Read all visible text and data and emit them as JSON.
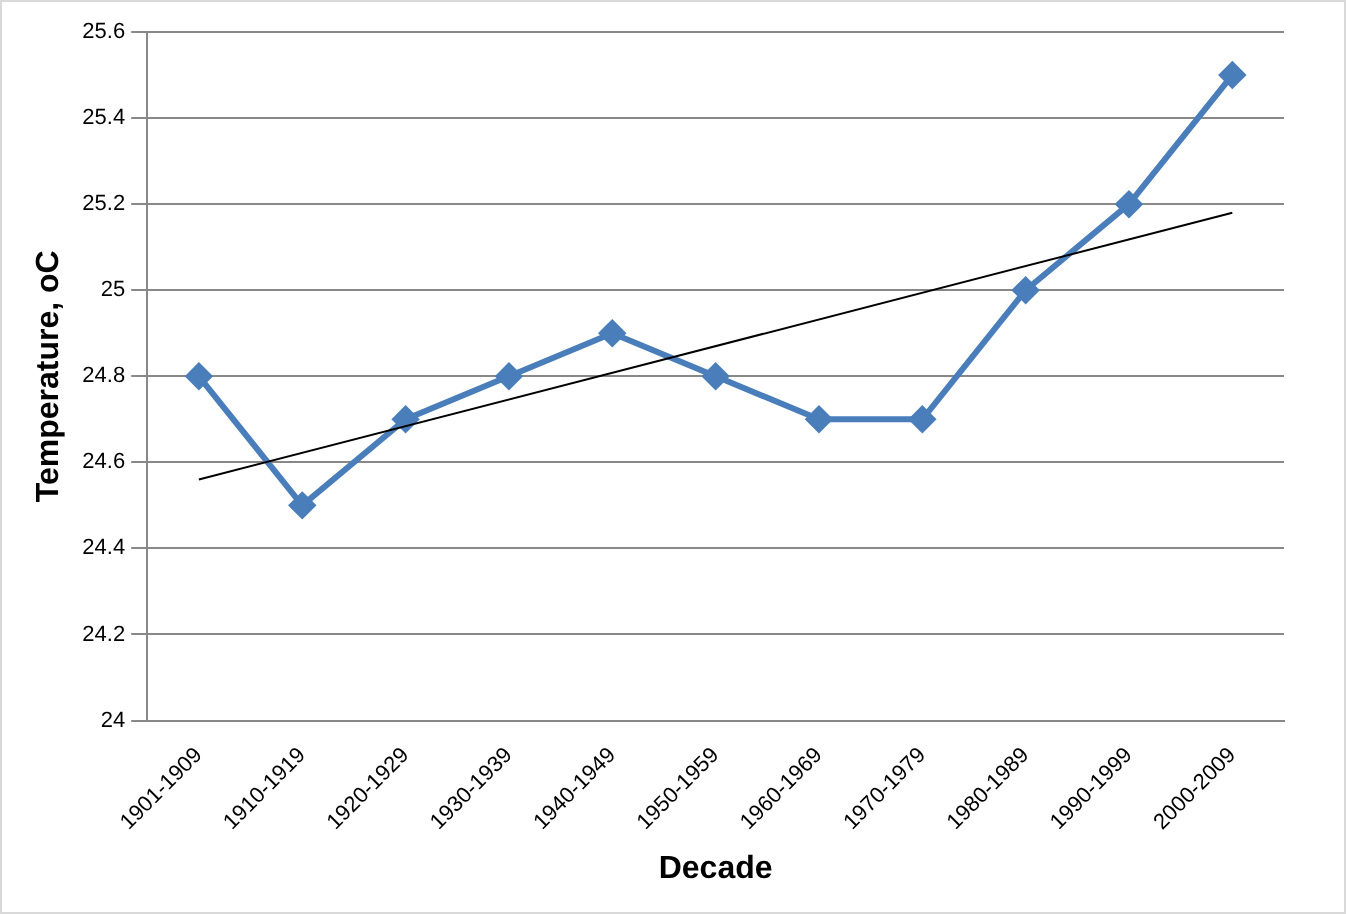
{
  "chart_data": {
    "type": "line",
    "xlabel": "Decade",
    "ylabel": "Temperature, oC",
    "categories": [
      "1901-1909",
      "1910-1919",
      "1920-1929",
      "1930-1939",
      "1940-1949",
      "1950-1959",
      "1960-1969",
      "1970-1979",
      "1980-1989",
      "1990-1999",
      "2000-2009"
    ],
    "series": [
      {
        "color": "#4a7ebb",
        "values": [
          24.8,
          24.5,
          24.7,
          24.8,
          24.9,
          24.8,
          24.7,
          24.7,
          25.0,
          25.2,
          25.5
        ],
        "marker": "diamond"
      },
      {
        "type": "line",
        "color": "#000000",
        "x": [
          "1901-1909",
          "2000-2009"
        ],
        "values": [
          24.56,
          25.18
        ],
        "marker": "none"
      }
    ],
    "ylim": [
      24,
      25.6
    ],
    "yticks": [
      24,
      24.2,
      24.4,
      24.6,
      24.8,
      25,
      25.2,
      25.4,
      25.6
    ],
    "grid": "y",
    "legend": false
  }
}
